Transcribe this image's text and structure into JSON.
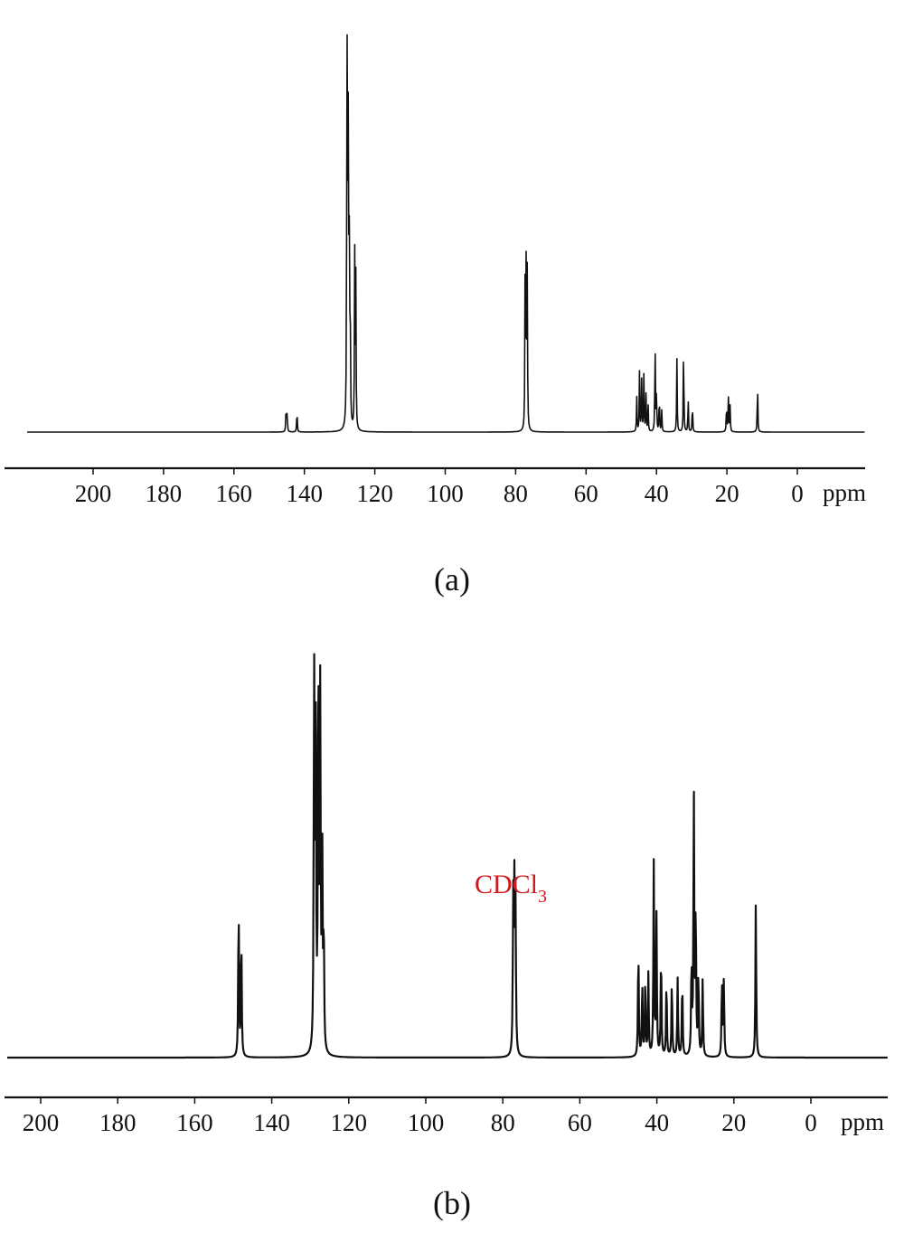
{
  "chart_data": [
    {
      "type": "line",
      "panel_label": "(a)",
      "xlabel": "ppm",
      "x_reversed": true,
      "xlim": [
        210,
        -5
      ],
      "x_ticks": [
        200,
        180,
        160,
        140,
        120,
        100,
        80,
        60,
        40,
        20,
        0
      ],
      "y_range": [
        0,
        1.0
      ],
      "grid": false,
      "baseline": 0.0,
      "peaks": [
        {
          "ppm": 145.2,
          "intensity": 0.058
        },
        {
          "ppm": 144.9,
          "intensity": 0.05
        },
        {
          "ppm": 142.1,
          "intensity": 0.055
        },
        {
          "ppm": 127.9,
          "intensity": 1.0
        },
        {
          "ppm": 127.6,
          "intensity": 0.87
        },
        {
          "ppm": 127.3,
          "intensity": 0.57
        },
        {
          "ppm": 127.0,
          "intensity": 0.3
        },
        {
          "ppm": 125.7,
          "intensity": 0.4
        },
        {
          "ppm": 125.4,
          "intensity": 0.35
        },
        {
          "ppm": 77.3,
          "intensity": 0.37
        },
        {
          "ppm": 77.0,
          "intensity": 0.38
        },
        {
          "ppm": 76.7,
          "intensity": 0.36
        },
        {
          "ppm": 45.6,
          "intensity": 0.08
        },
        {
          "ppm": 44.8,
          "intensity": 0.15
        },
        {
          "ppm": 44.2,
          "intensity": 0.12
        },
        {
          "ppm": 43.6,
          "intensity": 0.13
        },
        {
          "ppm": 43.0,
          "intensity": 0.09
        },
        {
          "ppm": 42.4,
          "intensity": 0.07
        },
        {
          "ppm": 40.4,
          "intensity": 0.21
        },
        {
          "ppm": 40.0,
          "intensity": 0.1
        },
        {
          "ppm": 39.2,
          "intensity": 0.09
        },
        {
          "ppm": 38.5,
          "intensity": 0.05
        },
        {
          "ppm": 34.2,
          "intensity": 0.17
        },
        {
          "ppm": 32.3,
          "intensity": 0.21
        },
        {
          "ppm": 31.0,
          "intensity": 0.08
        },
        {
          "ppm": 29.8,
          "intensity": 0.07
        },
        {
          "ppm": 20.1,
          "intensity": 0.07
        },
        {
          "ppm": 19.6,
          "intensity": 0.09
        },
        {
          "ppm": 19.1,
          "intensity": 0.06
        },
        {
          "ppm": 11.3,
          "intensity": 0.12
        }
      ]
    },
    {
      "type": "line",
      "panel_label": "(b)",
      "xlabel": "ppm",
      "x_reversed": true,
      "xlim": [
        205,
        -5
      ],
      "x_ticks": [
        200,
        180,
        160,
        140,
        120,
        100,
        80,
        60,
        40,
        20,
        0
      ],
      "y_range": [
        0,
        1.0
      ],
      "grid": false,
      "baseline": 0.0,
      "annotations": [
        {
          "text": "CDCl",
          "subscript": "3",
          "ppm": 77.0,
          "color": "#d0191f"
        }
      ],
      "peaks": [
        {
          "ppm": 148.6,
          "intensity": 0.38
        },
        {
          "ppm": 147.9,
          "intensity": 0.3
        },
        {
          "ppm": 129.0,
          "intensity": 0.94
        },
        {
          "ppm": 128.6,
          "intensity": 0.92
        },
        {
          "ppm": 127.9,
          "intensity": 1.0
        },
        {
          "ppm": 127.4,
          "intensity": 0.87
        },
        {
          "ppm": 126.9,
          "intensity": 0.52
        },
        {
          "ppm": 126.5,
          "intensity": 0.3
        },
        {
          "ppm": 77.3,
          "intensity": 0.37
        },
        {
          "ppm": 77.0,
          "intensity": 0.38
        },
        {
          "ppm": 76.7,
          "intensity": 0.37
        },
        {
          "ppm": 44.8,
          "intensity": 0.27
        },
        {
          "ppm": 43.8,
          "intensity": 0.18
        },
        {
          "ppm": 43.0,
          "intensity": 0.19
        },
        {
          "ppm": 42.2,
          "intensity": 0.2
        },
        {
          "ppm": 40.8,
          "intensity": 0.47
        },
        {
          "ppm": 40.1,
          "intensity": 0.34
        },
        {
          "ppm": 38.9,
          "intensity": 0.26
        },
        {
          "ppm": 37.5,
          "intensity": 0.19
        },
        {
          "ppm": 36.1,
          "intensity": 0.19
        },
        {
          "ppm": 34.6,
          "intensity": 0.19
        },
        {
          "ppm": 33.4,
          "intensity": 0.19
        },
        {
          "ppm": 31.0,
          "intensity": 0.23
        },
        {
          "ppm": 30.4,
          "intensity": 0.64
        },
        {
          "ppm": 29.9,
          "intensity": 0.36
        },
        {
          "ppm": 29.2,
          "intensity": 0.2
        },
        {
          "ppm": 28.1,
          "intensity": 0.19
        },
        {
          "ppm": 23.1,
          "intensity": 0.19
        },
        {
          "ppm": 22.6,
          "intensity": 0.19
        },
        {
          "ppm": 14.3,
          "intensity": 0.38
        }
      ]
    }
  ]
}
